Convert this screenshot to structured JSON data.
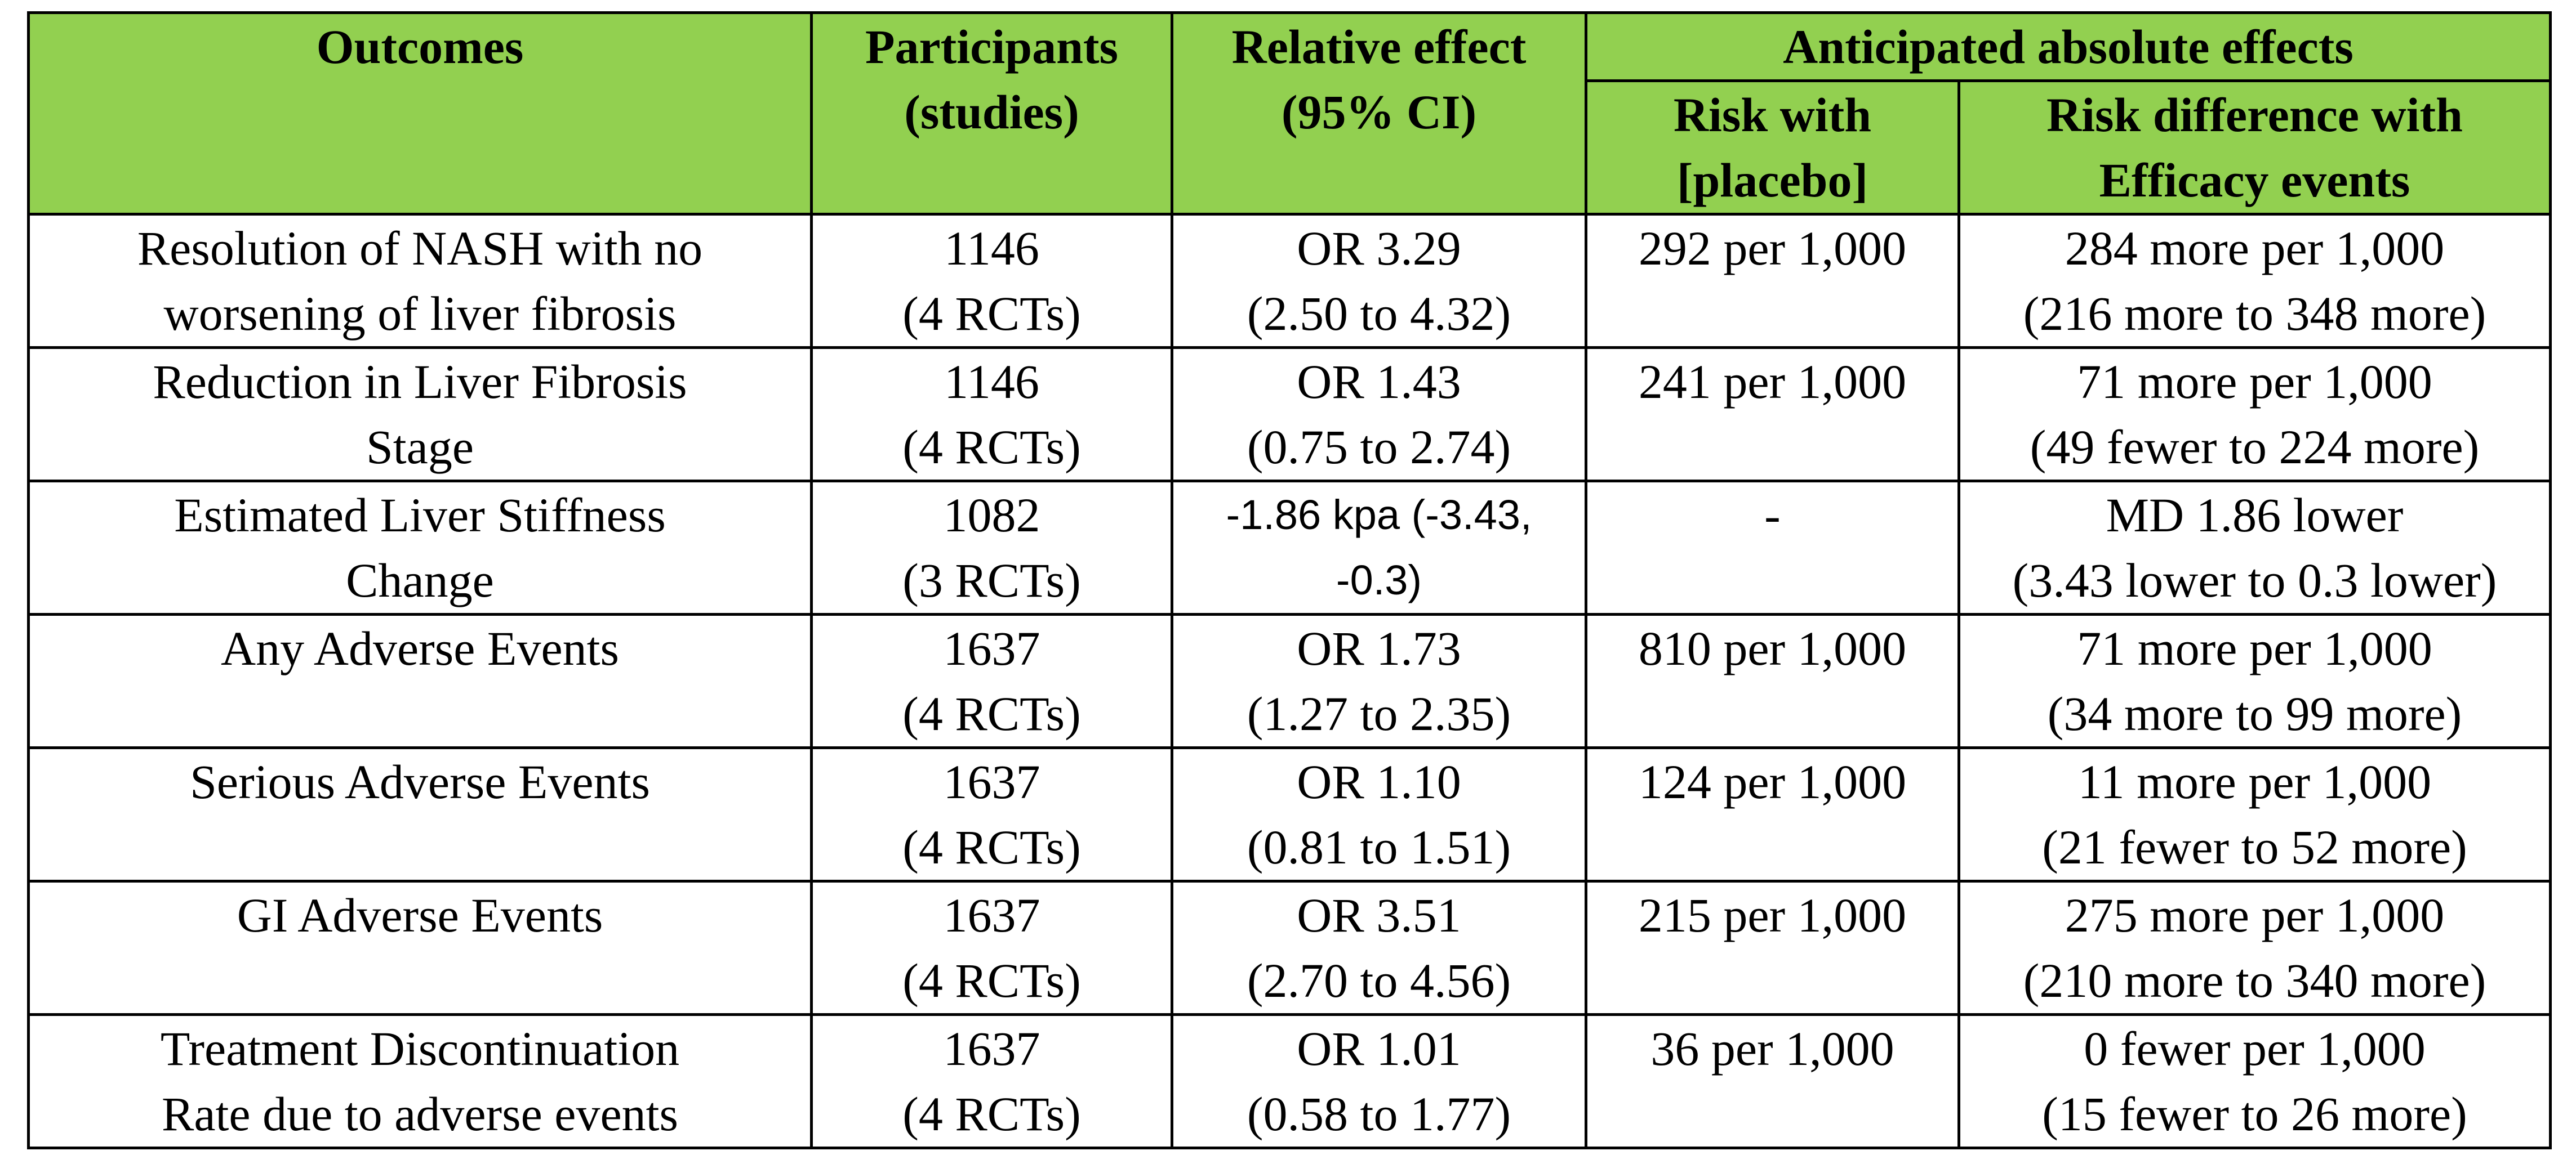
{
  "table": {
    "headers": {
      "outcomes": "Outcomes",
      "participants": [
        "Participants",
        "(studies)"
      ],
      "relative_effect": [
        "Relative effect",
        "(95% CI)"
      ],
      "anticipated": "Anticipated absolute effects",
      "risk_with": [
        "Risk with",
        "[placebo]"
      ],
      "risk_difference": [
        "Risk difference with",
        "Efficacy events"
      ]
    },
    "header_color": "#92d050",
    "rows": [
      {
        "outcome": [
          "Resolution of NASH with no",
          "worsening of liver fibrosis"
        ],
        "participants": [
          "1146",
          "(4 RCTs)"
        ],
        "relative": [
          "OR 3.29",
          "(2.50 to 4.32)"
        ],
        "risk_with": "292 per 1,000",
        "risk_difference": [
          "284 more per 1,000",
          "(216 more to 348 more)"
        ]
      },
      {
        "outcome": [
          "Reduction in Liver Fibrosis",
          "Stage"
        ],
        "participants": [
          "1146",
          "(4 RCTs)"
        ],
        "relative": [
          "OR 1.43",
          "(0.75 to 2.74)"
        ],
        "risk_with": "241 per 1,000",
        "risk_difference": [
          "71 more per 1,000",
          "(49 fewer to 224 more)"
        ]
      },
      {
        "outcome": [
          "Estimated Liver Stiffness",
          "Change"
        ],
        "participants": [
          "1082",
          "(3 RCTs)"
        ],
        "relative": [
          "-1.86 kpa (-3.43,",
          "-0.3)"
        ],
        "risk_with": "-",
        "risk_difference": [
          "MD 1.86 lower",
          "(3.43 lower to 0.3 lower)"
        ]
      },
      {
        "outcome": [
          "Any Adverse Events",
          ""
        ],
        "participants": [
          "1637",
          "(4 RCTs)"
        ],
        "relative": [
          "OR 1.73",
          "(1.27 to 2.35)"
        ],
        "risk_with": "810 per 1,000",
        "risk_difference": [
          "71 more per 1,000",
          "(34 more to 99 more)"
        ]
      },
      {
        "outcome": [
          "Serious Adverse Events",
          ""
        ],
        "participants": [
          "1637",
          "(4 RCTs)"
        ],
        "relative": [
          "OR 1.10",
          "(0.81 to 1.51)"
        ],
        "risk_with": "124 per 1,000",
        "risk_difference": [
          "11 more per 1,000",
          "(21 fewer to 52 more)"
        ]
      },
      {
        "outcome": [
          "GI Adverse Events",
          ""
        ],
        "participants": [
          "1637",
          "(4 RCTs)"
        ],
        "relative": [
          "OR 3.51",
          "(2.70 to 4.56)"
        ],
        "risk_with": "215 per 1,000",
        "risk_difference": [
          "275 more per 1,000",
          "(210 more to 340 more)"
        ]
      },
      {
        "outcome": [
          "Treatment Discontinuation",
          "Rate due to adverse events"
        ],
        "participants": [
          "1637",
          "(4 RCTs)"
        ],
        "relative": [
          "OR 1.01",
          "(0.58 to 1.77)"
        ],
        "risk_with": "36 per 1,000",
        "risk_difference": [
          "0 fewer per 1,000",
          "(15 fewer to 26 more)"
        ]
      }
    ]
  }
}
